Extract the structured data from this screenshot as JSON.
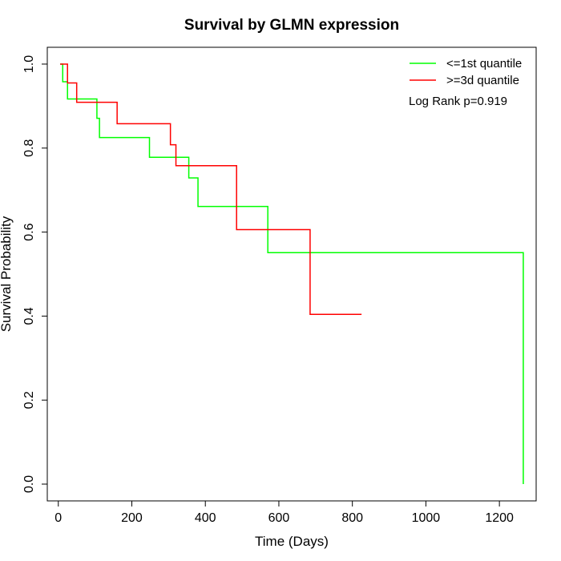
{
  "chart_data": {
    "type": "line",
    "step": true,
    "title": "Survival by GLMN expression",
    "xlabel": "Time (Days)",
    "ylabel": "Survival Probability",
    "xlim": [
      -30,
      1300
    ],
    "ylim": [
      -0.04,
      1.04
    ],
    "xticks": [
      0,
      200,
      400,
      600,
      800,
      1000,
      1200
    ],
    "yticks": [
      0.0,
      0.2,
      0.4,
      0.6,
      0.8,
      1.0
    ],
    "ytick_labels": [
      "0.0",
      "0.2",
      "0.4",
      "0.6",
      "0.8",
      "1.0"
    ],
    "grid": false,
    "legend_position": "top-right",
    "annotation": "Log Rank p=0.919",
    "series": [
      {
        "name": "<=1st quantile",
        "color": "#00ff00",
        "x": [
          5,
          12,
          25,
          105,
          112,
          248,
          355,
          380,
          570,
          1265,
          1265
        ],
        "y": [
          1.0,
          0.958,
          0.917,
          0.871,
          0.825,
          0.778,
          0.729,
          0.661,
          0.551,
          0.551,
          0.0
        ]
      },
      {
        "name": ">=3d quantile",
        "color": "#ff0000",
        "x": [
          5,
          25,
          50,
          160,
          305,
          320,
          485,
          685,
          825
        ],
        "y": [
          1.0,
          0.955,
          0.909,
          0.858,
          0.808,
          0.758,
          0.606,
          0.404,
          0.404
        ]
      }
    ]
  }
}
